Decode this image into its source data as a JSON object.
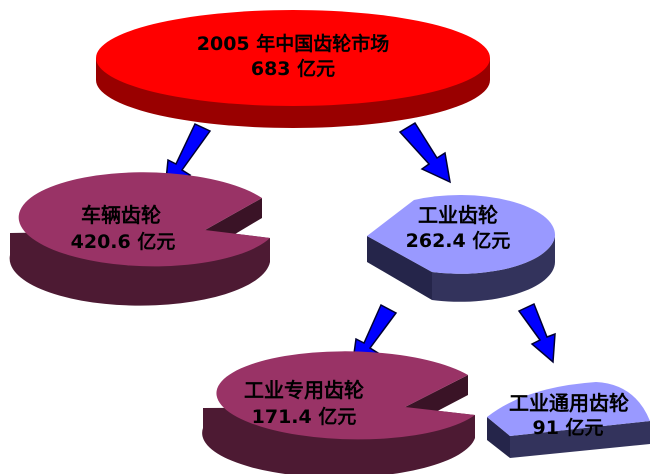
{
  "diagram": {
    "root": {
      "line1": "2005 年中国齿轮市场",
      "line2": "683 亿元"
    },
    "vehicle": {
      "line1": "车辆齿轮",
      "line2": "420.6 亿元"
    },
    "industrial": {
      "line1": "工业齿轮",
      "line2": "262.4 亿元"
    },
    "industrial_special": {
      "line1": "工业专用齿轮",
      "line2": "171.4 亿元"
    },
    "industrial_general": {
      "line1": "工业通用齿轮",
      "line2": "91 亿元"
    }
  },
  "colors": {
    "root_top": "#ff0000",
    "root_side": "#990000",
    "vehicle_top": "#993366",
    "vehicle_side": "#4d1a33",
    "industrial_top": "#9999ff",
    "industrial_side": "#33335c",
    "arrow_fill": "#0000ff",
    "arrow_edge": "#000033"
  }
}
